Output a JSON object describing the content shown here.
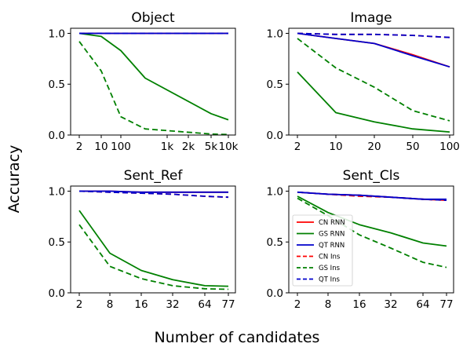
{
  "figure": {
    "ylabel": "Accuracy",
    "xlabel": "Number of candidates"
  },
  "colors": {
    "CN": "#ff0000",
    "GS": "#008000",
    "QT": "#0000cc"
  },
  "chart_data": [
    {
      "type": "line",
      "title": "Object",
      "x_tick_labels": [
        "2",
        "10",
        "100",
        "1k",
        "2k",
        "5k",
        "10k"
      ],
      "y_ticks": [
        "0.0",
        "0.5",
        "1.0"
      ],
      "ylim": [
        0,
        1.05
      ],
      "grid": false,
      "x": [
        2,
        10,
        20,
        50,
        100,
        200,
        1000,
        5000,
        10000
      ],
      "series": [
        {
          "name": "CN RNN",
          "values": [
            1.0,
            1.0,
            1.0,
            1.0,
            1.0,
            1.0,
            1.0,
            1.0,
            1.0
          ]
        },
        {
          "name": "GS RNN",
          "values": [
            1.0,
            0.97,
            0.83,
            0.56,
            null,
            null,
            null,
            0.21,
            0.15
          ]
        },
        {
          "name": "QT RNN",
          "values": [
            1.0,
            1.0,
            1.0,
            1.0,
            1.0,
            1.0,
            1.0,
            1.0,
            1.0
          ]
        },
        {
          "name": "CN Ins",
          "values": [
            1.0,
            1.0,
            1.0,
            1.0,
            1.0,
            1.0,
            1.0,
            1.0,
            1.0
          ]
        },
        {
          "name": "GS Ins",
          "values": [
            0.92,
            0.63,
            0.18,
            0.06,
            null,
            null,
            null,
            0.01,
            0.005
          ]
        },
        {
          "name": "QT Ins",
          "values": [
            1.0,
            1.0,
            1.0,
            1.0,
            1.0,
            1.0,
            1.0,
            1.0,
            1.0
          ]
        }
      ]
    },
    {
      "type": "line",
      "title": "Image",
      "x_tick_labels": [
        "2",
        "10",
        "20",
        "50",
        "100"
      ],
      "y_ticks": [
        "0.0",
        "0.5",
        "1.0"
      ],
      "ylim": [
        0,
        1.05
      ],
      "grid": false,
      "x": [
        2,
        10,
        20,
        50,
        100
      ],
      "series": [
        {
          "name": "CN RNN",
          "values": [
            1.0,
            0.95,
            0.9,
            0.79,
            0.67
          ]
        },
        {
          "name": "GS RNN",
          "values": [
            0.62,
            0.22,
            0.13,
            0.06,
            0.03
          ]
        },
        {
          "name": "QT RNN",
          "values": [
            1.0,
            0.95,
            0.9,
            0.78,
            0.67
          ]
        },
        {
          "name": "CN Ins",
          "values": [
            1.0,
            0.99,
            0.99,
            0.98,
            0.96
          ]
        },
        {
          "name": "GS Ins",
          "values": [
            0.95,
            0.66,
            0.47,
            0.24,
            0.14
          ]
        },
        {
          "name": "QT Ins",
          "values": [
            1.0,
            0.99,
            0.99,
            0.98,
            0.96
          ]
        }
      ]
    },
    {
      "type": "line",
      "title": "Sent_Ref",
      "x_tick_labels": [
        "2",
        "8",
        "16",
        "32",
        "64",
        "77"
      ],
      "y_ticks": [
        "0.0",
        "0.5",
        "1.0"
      ],
      "ylim": [
        0,
        1.05
      ],
      "grid": false,
      "x": [
        2,
        8,
        16,
        32,
        64,
        77
      ],
      "series": [
        {
          "name": "CN RNN",
          "values": [
            1.0,
            1.0,
            0.99,
            0.99,
            0.99,
            0.99
          ]
        },
        {
          "name": "GS RNN",
          "values": [
            0.81,
            0.39,
            0.22,
            0.13,
            0.07,
            0.065
          ]
        },
        {
          "name": "QT RNN",
          "values": [
            1.0,
            1.0,
            0.99,
            0.99,
            0.99,
            0.99
          ]
        },
        {
          "name": "CN Ins",
          "values": [
            1.0,
            0.99,
            0.98,
            0.97,
            0.95,
            0.94
          ]
        },
        {
          "name": "GS Ins",
          "values": [
            0.67,
            0.26,
            0.14,
            0.07,
            0.04,
            0.035
          ]
        },
        {
          "name": "QT Ins",
          "values": [
            1.0,
            0.99,
            0.98,
            0.97,
            0.95,
            0.94
          ]
        }
      ]
    },
    {
      "type": "line",
      "title": "Sent_Cls",
      "x_tick_labels": [
        "2",
        "8",
        "16",
        "32",
        "64",
        "77"
      ],
      "y_ticks": [
        "0.0",
        "0.5",
        "1.0"
      ],
      "ylim": [
        0,
        1.05
      ],
      "grid": false,
      "x": [
        2,
        8,
        16,
        32,
        64,
        77
      ],
      "legend": "center-left",
      "series": [
        {
          "name": "CN RNN",
          "values": [
            0.99,
            0.97,
            0.96,
            0.94,
            0.92,
            0.91
          ]
        },
        {
          "name": "GS RNN",
          "values": [
            0.95,
            0.79,
            0.67,
            0.59,
            0.49,
            0.46
          ]
        },
        {
          "name": "QT RNN",
          "values": [
            0.99,
            0.97,
            0.96,
            0.94,
            0.92,
            0.92
          ]
        },
        {
          "name": "CN Ins",
          "values": [
            0.99,
            0.97,
            0.95,
            0.94,
            0.92,
            0.91
          ]
        },
        {
          "name": "GS Ins",
          "values": [
            0.93,
            0.76,
            0.57,
            0.44,
            0.3,
            0.25
          ]
        },
        {
          "name": "QT Ins",
          "values": [
            0.99,
            0.97,
            0.96,
            0.94,
            0.92,
            0.91
          ]
        }
      ]
    }
  ]
}
